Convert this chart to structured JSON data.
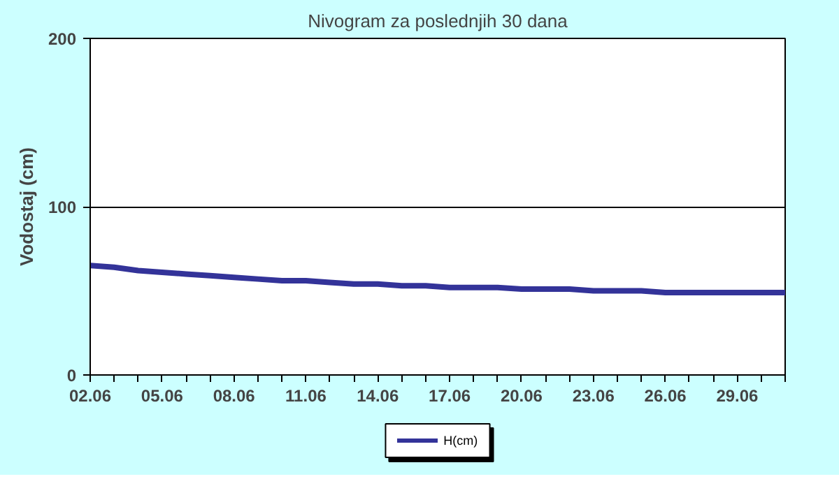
{
  "chart_data": {
    "type": "line",
    "title": "Nivogram za poslednjih 30 dana",
    "ylabel": "Vodostaj (cm)",
    "categories": [
      "02.06",
      null,
      null,
      "05.06",
      null,
      null,
      "08.06",
      null,
      null,
      "11.06",
      null,
      null,
      "14.06",
      null,
      null,
      "17.06",
      null,
      null,
      "20.06",
      null,
      null,
      "23.06",
      null,
      null,
      "26.06",
      null,
      null,
      "29.06",
      null,
      null
    ],
    "series": [
      {
        "name": "H(cm)",
        "color": "#333399",
        "values": [
          65,
          64,
          62,
          61,
          60,
          59,
          58,
          57,
          56,
          56,
          55,
          54,
          54,
          53,
          53,
          52,
          52,
          52,
          51,
          51,
          51,
          50,
          50,
          50,
          49,
          49,
          49,
          49,
          49,
          49
        ]
      }
    ],
    "ylim": [
      0,
      200
    ],
    "yticks": [
      0,
      100,
      200
    ],
    "grid": "y",
    "legend": "bottom",
    "marker": "none",
    "line_style": "solid"
  }
}
